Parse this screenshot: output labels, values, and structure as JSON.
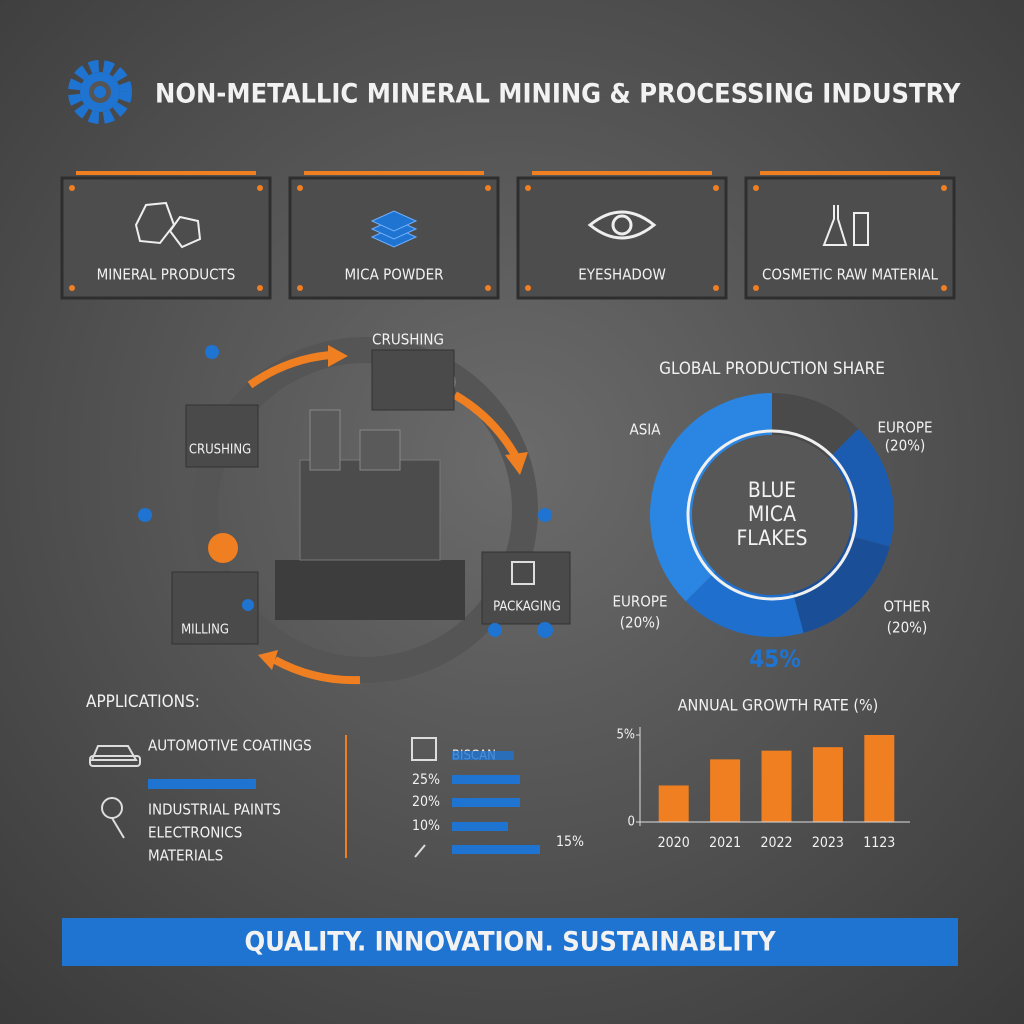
{
  "header": {
    "title": "NON-METALLIC MINERAL MINING & PROCESSING INDUSTRY"
  },
  "cards": [
    {
      "label": "MINERAL PRODUCTS"
    },
    {
      "label": "MICA POWDER"
    },
    {
      "label": "EYESHADOW"
    },
    {
      "label": "COSMETIC RAW MATERIAL"
    }
  ],
  "process": {
    "steps": [
      "CRUSHING",
      "CRUSHING",
      "MILLING",
      "PACKAGING"
    ]
  },
  "chart_data": [
    {
      "type": "donut",
      "title": "GLOBAL PRODUCTION SHARE",
      "center_text": "BLUE MICA FLAKES",
      "categories": [
        null,
        "EUROPE",
        "OTHER",
        "EUROPE",
        "ASIA"
      ],
      "values": [
        15,
        20,
        20,
        20,
        45
      ],
      "value_labels": [
        null,
        "(20%)",
        "(20%)",
        "(20%)",
        "45%"
      ],
      "colors": [
        "#4a4a4a",
        "#1b5cb0",
        "#1a4f98",
        "#1f6fcf",
        "#2a86e2"
      ]
    },
    {
      "type": "bar",
      "title": "ANNUAL GROWTH RATE (%)",
      "categories": [
        "2020",
        "2021",
        "2022",
        "2023",
        "1123"
      ],
      "values": [
        2.1,
        3.6,
        4.1,
        4.3,
        5.0
      ],
      "color": "#f07f22",
      "ylim": [
        0,
        5
      ],
      "yticks": [
        0,
        {
          "value": 5,
          "label": "5%"
        }
      ]
    }
  ],
  "applications": {
    "title": "APPLICATIONS:",
    "items": [
      "AUTOMOTIVE COATINGS",
      "INDUSTRIAL PAINTS",
      "ELECTRONICS",
      "MATERIALS"
    ]
  },
  "mini_list": {
    "header": "BISCAN",
    "rows": [
      "25%",
      "20%",
      "10%"
    ],
    "note": "15%"
  },
  "footer": {
    "tagline": "QUALITY. INNOVATION. SUSTAINABLITY"
  }
}
